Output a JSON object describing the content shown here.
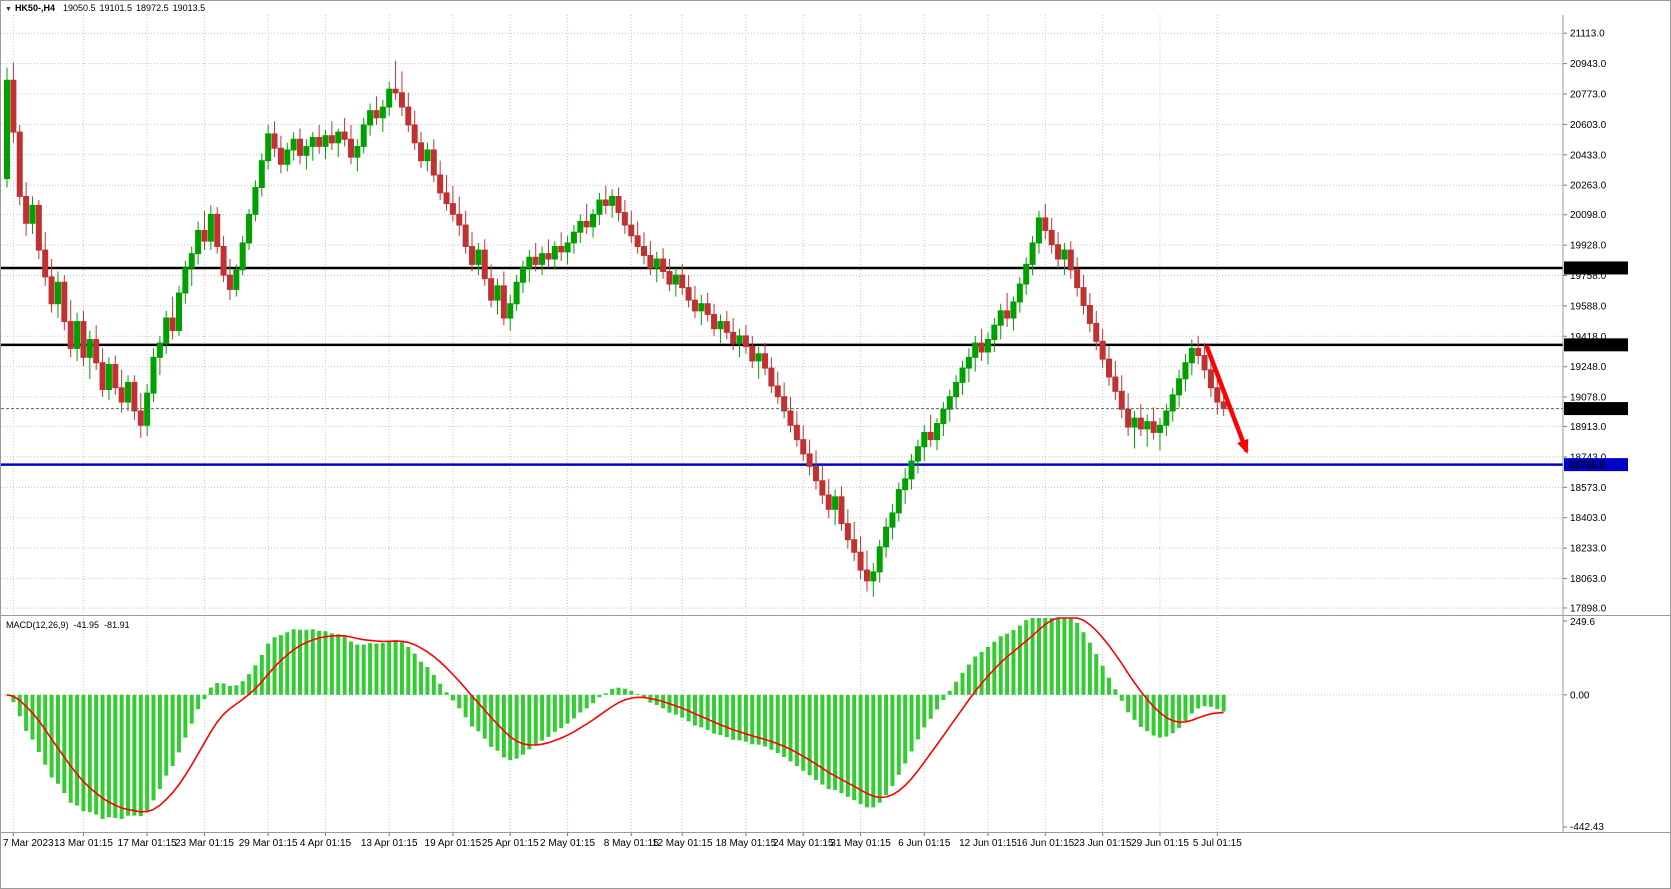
{
  "topbar": {
    "caret": "▼",
    "symbol_timeframe": "HK50-,H4",
    "open": "19050.5",
    "high": "19101.5",
    "low": "18972.5",
    "close": "19013.5"
  },
  "macd_panel": {
    "label": "MACD(12,26,9)",
    "value_main": "-41.95",
    "value_signal": "-81.91",
    "scale_max": "249.6",
    "scale_zero": "0.00",
    "scale_min": "-442.43"
  },
  "colors": {
    "background": "#ffffff",
    "grid": "#c4c4c4",
    "up_candle": "#00A000",
    "down_candle": "#C03232",
    "macd_hist": "#33CC33",
    "macd_signal": "#FF0000",
    "black_line": "#000000",
    "blue_line": "#0000C8",
    "arrow": "#FF0000",
    "badge_text": "#ffffff",
    "separator": "#9a9a9a",
    "current_price_line": "#666666"
  },
  "chart_data": {
    "type": "candlestick",
    "symbol": "HK50-",
    "timeframe": "H4",
    "title": "HK50-,H4 19050.5 19101.5 18972.5 19013.5",
    "ylim": [
      17870,
      21215
    ],
    "y_ticks": [
      "21113.0",
      "20943.0",
      "20773.0",
      "20603.0",
      "20433.0",
      "20263.0",
      "20098.0",
      "19928.0",
      "19758.0",
      "19588.0",
      "19418.0",
      "19248.0",
      "19078.0",
      "18913.0",
      "18743.0",
      "18573.0",
      "18403.0",
      "18233.0",
      "18063.0",
      "17898.0"
    ],
    "price_lines": [
      {
        "price": 19800.0,
        "label": "19800.0",
        "color": "#000000",
        "width": 2.5
      },
      {
        "price": 19370.0,
        "label": "19370.0",
        "color": "#000000",
        "width": 2.5
      },
      {
        "price": 18700.0,
        "label": "18700.0",
        "color": "#0000C8",
        "width": 2.5
      }
    ],
    "current_price": {
      "value": 19013.5,
      "label": "19013.5"
    },
    "x_labels": [
      {
        "bar": 1,
        "label": "7 Mar 2023"
      },
      {
        "bar": 12,
        "label": "13 Mar 01:15"
      },
      {
        "bar": 22,
        "label": "17 Mar 01:15"
      },
      {
        "bar": 31,
        "label": "23 Mar 01:15"
      },
      {
        "bar": 41,
        "label": "29 Mar 01:15"
      },
      {
        "bar": 50,
        "label": "4 Apr 01:15"
      },
      {
        "bar": 60,
        "label": "13 Apr 01:15"
      },
      {
        "bar": 70,
        "label": "19 Apr 01:15"
      },
      {
        "bar": 79,
        "label": "25 Apr 01:15"
      },
      {
        "bar": 88,
        "label": "2 May 01:15"
      },
      {
        "bar": 98,
        "label": "8 May 01:15"
      },
      {
        "bar": 106,
        "label": "12 May 01:15"
      },
      {
        "bar": 116,
        "label": "18 May 01:15"
      },
      {
        "bar": 125,
        "label": "24 May 01:15"
      },
      {
        "bar": 134,
        "label": "31 May 01:15"
      },
      {
        "bar": 144,
        "label": "6 Jun 01:15"
      },
      {
        "bar": 154,
        "label": "12 Jun 01:15"
      },
      {
        "bar": 163,
        "label": "16 Jun 01:15"
      },
      {
        "bar": 172,
        "label": "23 Jun 01:15"
      },
      {
        "bar": 181,
        "label": "29 Jun 01:15"
      },
      {
        "bar": 190,
        "label": "5 Jul 01:15"
      }
    ],
    "candles": [
      [
        20300,
        20920,
        20250,
        20850
      ],
      [
        20850,
        20950,
        20500,
        20560
      ],
      [
        20560,
        20600,
        20150,
        20200
      ],
      [
        20200,
        20280,
        19980,
        20050
      ],
      [
        20050,
        20200,
        19990,
        20150
      ],
      [
        20150,
        20180,
        19850,
        19900
      ],
      [
        19900,
        20000,
        19700,
        19750
      ],
      [
        19750,
        19850,
        19550,
        19600
      ],
      [
        19600,
        19780,
        19520,
        19720
      ],
      [
        19720,
        19760,
        19450,
        19500
      ],
      [
        19500,
        19620,
        19300,
        19350
      ],
      [
        19350,
        19550,
        19280,
        19500
      ],
      [
        19500,
        19560,
        19250,
        19300
      ],
      [
        19300,
        19450,
        19180,
        19400
      ],
      [
        19400,
        19480,
        19230,
        19270
      ],
      [
        19270,
        19350,
        19080,
        19120
      ],
      [
        19120,
        19300,
        19060,
        19260
      ],
      [
        19260,
        19310,
        19090,
        19130
      ],
      [
        19130,
        19230,
        18990,
        19050
      ],
      [
        19050,
        19200,
        19000,
        19160
      ],
      [
        19160,
        19200,
        18950,
        19000
      ],
      [
        19000,
        19100,
        18850,
        18920
      ],
      [
        18920,
        19150,
        18860,
        19100
      ],
      [
        19100,
        19350,
        19050,
        19300
      ],
      [
        19300,
        19420,
        19200,
        19380
      ],
      [
        19380,
        19560,
        19320,
        19520
      ],
      [
        19520,
        19640,
        19400,
        19450
      ],
      [
        19450,
        19700,
        19420,
        19660
      ],
      [
        19660,
        19840,
        19600,
        19800
      ],
      [
        19800,
        19920,
        19700,
        19880
      ],
      [
        19880,
        20060,
        19820,
        20010
      ],
      [
        20010,
        20120,
        19900,
        19950
      ],
      [
        19950,
        20150,
        19900,
        20100
      ],
      [
        20100,
        20140,
        19880,
        19920
      ],
      [
        19920,
        19980,
        19720,
        19760
      ],
      [
        19760,
        19850,
        19620,
        19680
      ],
      [
        19680,
        19820,
        19640,
        19790
      ],
      [
        19790,
        19980,
        19760,
        19940
      ],
      [
        19940,
        20130,
        19900,
        20100
      ],
      [
        20100,
        20290,
        20060,
        20250
      ],
      [
        20250,
        20440,
        20200,
        20400
      ],
      [
        20400,
        20600,
        20350,
        20550
      ],
      [
        20550,
        20620,
        20420,
        20470
      ],
      [
        20470,
        20540,
        20330,
        20380
      ],
      [
        20380,
        20500,
        20340,
        20460
      ],
      [
        20460,
        20560,
        20400,
        20520
      ],
      [
        20520,
        20580,
        20380,
        20430
      ],
      [
        20430,
        20520,
        20350,
        20480
      ],
      [
        20480,
        20560,
        20400,
        20530
      ],
      [
        20530,
        20600,
        20440,
        20480
      ],
      [
        20480,
        20570,
        20410,
        20540
      ],
      [
        20540,
        20620,
        20460,
        20500
      ],
      [
        20500,
        20580,
        20420,
        20560
      ],
      [
        20560,
        20640,
        20480,
        20520
      ],
      [
        20520,
        20600,
        20380,
        20420
      ],
      [
        20420,
        20520,
        20340,
        20480
      ],
      [
        20480,
        20640,
        20440,
        20600
      ],
      [
        20600,
        20720,
        20540,
        20680
      ],
      [
        20680,
        20760,
        20600,
        20640
      ],
      [
        20640,
        20740,
        20560,
        20700
      ],
      [
        20700,
        20840,
        20650,
        20800
      ],
      [
        20800,
        20960,
        20740,
        20780
      ],
      [
        20780,
        20900,
        20650,
        20700
      ],
      [
        20700,
        20780,
        20560,
        20600
      ],
      [
        20600,
        20680,
        20460,
        20500
      ],
      [
        20500,
        20560,
        20360,
        20400
      ],
      [
        20400,
        20500,
        20340,
        20460
      ],
      [
        20460,
        20520,
        20280,
        20320
      ],
      [
        20320,
        20400,
        20180,
        20220
      ],
      [
        20220,
        20320,
        20120,
        20160
      ],
      [
        20160,
        20260,
        20060,
        20100
      ],
      [
        20100,
        20200,
        19980,
        20040
      ],
      [
        20040,
        20120,
        19880,
        19920
      ],
      [
        19920,
        20000,
        19780,
        19820
      ],
      [
        19820,
        19940,
        19760,
        19900
      ],
      [
        19900,
        19960,
        19700,
        19740
      ],
      [
        19740,
        19820,
        19580,
        19620
      ],
      [
        19620,
        19740,
        19540,
        19700
      ],
      [
        19700,
        19780,
        19480,
        19520
      ],
      [
        19520,
        19650,
        19450,
        19600
      ],
      [
        19600,
        19760,
        19560,
        19720
      ],
      [
        19720,
        19840,
        19660,
        19800
      ],
      [
        19800,
        19900,
        19720,
        19860
      ],
      [
        19860,
        19940,
        19780,
        19820
      ],
      [
        19820,
        19920,
        19760,
        19880
      ],
      [
        19880,
        19960,
        19800,
        19850
      ],
      [
        19850,
        19950,
        19790,
        19920
      ],
      [
        19920,
        20000,
        19840,
        19890
      ],
      [
        19890,
        19980,
        19820,
        19940
      ],
      [
        19940,
        20040,
        19880,
        20000
      ],
      [
        20000,
        20100,
        19940,
        20060
      ],
      [
        20060,
        20160,
        19990,
        20030
      ],
      [
        20030,
        20130,
        19970,
        20100
      ],
      [
        20100,
        20220,
        20040,
        20180
      ],
      [
        20180,
        20260,
        20100,
        20150
      ],
      [
        20150,
        20240,
        20080,
        20200
      ],
      [
        20200,
        20250,
        20060,
        20110
      ],
      [
        20110,
        20180,
        19990,
        20040
      ],
      [
        20040,
        20120,
        19940,
        19980
      ],
      [
        19980,
        20060,
        19880,
        19920
      ],
      [
        19920,
        20000,
        19820,
        19870
      ],
      [
        19870,
        19950,
        19760,
        19800
      ],
      [
        19800,
        19890,
        19720,
        19850
      ],
      [
        19850,
        19910,
        19740,
        19780
      ],
      [
        19780,
        19850,
        19670,
        19710
      ],
      [
        19710,
        19800,
        19640,
        19760
      ],
      [
        19760,
        19820,
        19650,
        19690
      ],
      [
        19690,
        19760,
        19580,
        19620
      ],
      [
        19620,
        19700,
        19520,
        19560
      ],
      [
        19560,
        19650,
        19480,
        19600
      ],
      [
        19600,
        19660,
        19500,
        19540
      ],
      [
        19540,
        19600,
        19420,
        19460
      ],
      [
        19460,
        19540,
        19380,
        19500
      ],
      [
        19500,
        19560,
        19400,
        19440
      ],
      [
        19440,
        19520,
        19340,
        19380
      ],
      [
        19380,
        19460,
        19300,
        19420
      ],
      [
        19420,
        19480,
        19320,
        19360
      ],
      [
        19360,
        19420,
        19240,
        19280
      ],
      [
        19280,
        19360,
        19180,
        19320
      ],
      [
        19320,
        19380,
        19200,
        19240
      ],
      [
        19240,
        19300,
        19100,
        19140
      ],
      [
        19140,
        19220,
        19040,
        19080
      ],
      [
        19080,
        19160,
        18960,
        19000
      ],
      [
        19000,
        19080,
        18880,
        18920
      ],
      [
        18920,
        19000,
        18800,
        18840
      ],
      [
        18840,
        18920,
        18720,
        18760
      ],
      [
        18760,
        18840,
        18640,
        18690
      ],
      [
        18690,
        18780,
        18560,
        18610
      ],
      [
        18610,
        18700,
        18480,
        18530
      ],
      [
        18530,
        18620,
        18400,
        18450
      ],
      [
        18450,
        18560,
        18360,
        18520
      ],
      [
        18520,
        18580,
        18330,
        18370
      ],
      [
        18370,
        18450,
        18230,
        18280
      ],
      [
        18280,
        18380,
        18160,
        18210
      ],
      [
        18210,
        18300,
        18060,
        18110
      ],
      [
        18110,
        18220,
        17990,
        18050
      ],
      [
        18050,
        18150,
        17960,
        18100
      ],
      [
        18100,
        18280,
        18040,
        18240
      ],
      [
        18240,
        18400,
        18180,
        18350
      ],
      [
        18350,
        18480,
        18280,
        18430
      ],
      [
        18430,
        18600,
        18380,
        18560
      ],
      [
        18560,
        18680,
        18480,
        18620
      ],
      [
        18620,
        18760,
        18560,
        18720
      ],
      [
        18720,
        18840,
        18650,
        18800
      ],
      [
        18800,
        18920,
        18720,
        18880
      ],
      [
        18880,
        18980,
        18800,
        18840
      ],
      [
        18840,
        18960,
        18780,
        18930
      ],
      [
        18930,
        19050,
        18860,
        19010
      ],
      [
        19010,
        19120,
        18940,
        19080
      ],
      [
        19080,
        19200,
        19010,
        19160
      ],
      [
        19160,
        19280,
        19090,
        19240
      ],
      [
        19240,
        19350,
        19160,
        19300
      ],
      [
        19300,
        19420,
        19220,
        19380
      ],
      [
        19380,
        19460,
        19280,
        19330
      ],
      [
        19330,
        19440,
        19260,
        19400
      ],
      [
        19400,
        19520,
        19330,
        19480
      ],
      [
        19480,
        19600,
        19400,
        19560
      ],
      [
        19560,
        19660,
        19470,
        19520
      ],
      [
        19520,
        19640,
        19450,
        19610
      ],
      [
        19610,
        19750,
        19550,
        19710
      ],
      [
        19710,
        19860,
        19650,
        19820
      ],
      [
        19820,
        19980,
        19760,
        19940
      ],
      [
        19940,
        20120,
        19880,
        20080
      ],
      [
        20080,
        20160,
        19960,
        20010
      ],
      [
        20010,
        20080,
        19880,
        19930
      ],
      [
        19930,
        20000,
        19800,
        19850
      ],
      [
        19850,
        19940,
        19760,
        19900
      ],
      [
        19900,
        19950,
        19740,
        19790
      ],
      [
        19790,
        19860,
        19640,
        19690
      ],
      [
        19690,
        19760,
        19540,
        19590
      ],
      [
        19590,
        19660,
        19440,
        19490
      ],
      [
        19490,
        19560,
        19340,
        19390
      ],
      [
        19390,
        19460,
        19240,
        19290
      ],
      [
        19290,
        19360,
        19140,
        19190
      ],
      [
        19190,
        19280,
        19060,
        19110
      ],
      [
        19110,
        19200,
        18960,
        19010
      ],
      [
        19010,
        19100,
        18860,
        18910
      ],
      [
        18910,
        19000,
        18790,
        18960
      ],
      [
        18960,
        19040,
        18860,
        18900
      ],
      [
        18900,
        18980,
        18800,
        18940
      ],
      [
        18940,
        19020,
        18840,
        18880
      ],
      [
        18880,
        18960,
        18780,
        18920
      ],
      [
        18920,
        19040,
        18860,
        19000
      ],
      [
        19000,
        19130,
        18940,
        19090
      ],
      [
        19090,
        19230,
        19020,
        19180
      ],
      [
        19180,
        19320,
        19110,
        19270
      ],
      [
        19270,
        19400,
        19200,
        19350
      ],
      [
        19350,
        19420,
        19260,
        19310
      ],
      [
        19310,
        19380,
        19180,
        19230
      ],
      [
        19230,
        19300,
        19080,
        19130
      ],
      [
        19130,
        19200,
        18980,
        19050
      ],
      [
        19050.5,
        19101.5,
        18972.5,
        19013.5
      ]
    ],
    "macd": {
      "params": "12,26,9",
      "ylim": [
        -442.43,
        249.6
      ],
      "current_main": -41.95,
      "current_signal": -81.91,
      "computed_from_closes": true
    },
    "annotations": [
      {
        "type": "arrow",
        "x1_bar": 188.3,
        "price1": 19365,
        "x2_bar": 194.6,
        "price2": 18775,
        "color": "#FF0000"
      }
    ]
  }
}
